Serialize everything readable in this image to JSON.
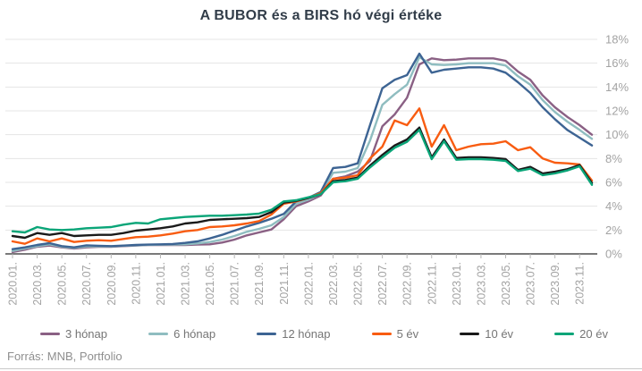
{
  "footer": {
    "source": "Forrás: MNB, Portfolio"
  },
  "chart_data": {
    "type": "line",
    "title": "A BUBOR és a BIRS hó végi értéke",
    "xlabel": "",
    "ylabel": "",
    "ylim": [
      0,
      18
    ],
    "ytick_step": 2,
    "ytick_suffix": "%",
    "grid": true,
    "legend_position": "bottom",
    "x_tick_every": 2,
    "x": [
      "2020.01.",
      "2020.02.",
      "2020.03.",
      "2020.04.",
      "2020.05.",
      "2020.06.",
      "2020.07.",
      "2020.08.",
      "2020.09.",
      "2020.10.",
      "2020.11.",
      "2020.12.",
      "2021.01.",
      "2021.02.",
      "2021.03.",
      "2021.04.",
      "2021.05.",
      "2021.06.",
      "2021.07.",
      "2021.08.",
      "2021.09.",
      "2021.10.",
      "2021.11.",
      "2021.12.",
      "2022.01.",
      "2022.02.",
      "2022.03.",
      "2022.04.",
      "2022.05.",
      "2022.06.",
      "2022.07.",
      "2022.08.",
      "2022.09.",
      "2022.10.",
      "2022.11.",
      "2022.12.",
      "2023.01.",
      "2023.02.",
      "2023.03.",
      "2023.04.",
      "2023.05.",
      "2023.06.",
      "2023.07.",
      "2023.08.",
      "2023.09.",
      "2023.10.",
      "2023.11.",
      "2023.12."
    ],
    "series": [
      {
        "name": "3 hónap",
        "color": "#8a6084",
        "values": [
          0.16,
          0.35,
          0.6,
          0.7,
          0.55,
          0.45,
          0.55,
          0.6,
          0.6,
          0.65,
          0.7,
          0.75,
          0.75,
          0.75,
          0.75,
          0.78,
          0.8,
          0.95,
          1.2,
          1.55,
          1.8,
          2.05,
          2.9,
          4.0,
          4.4,
          4.9,
          6.3,
          6.5,
          6.9,
          7.8,
          10.7,
          11.7,
          13.1,
          15.9,
          16.4,
          16.25,
          16.3,
          16.4,
          16.4,
          16.4,
          16.2,
          15.3,
          14.6,
          13.3,
          12.3,
          11.5,
          10.8,
          10.0
        ]
      },
      {
        "name": "6 hónap",
        "color": "#8fbdc0",
        "values": [
          0.25,
          0.45,
          0.65,
          0.8,
          0.6,
          0.5,
          0.62,
          0.63,
          0.62,
          0.68,
          0.72,
          0.76,
          0.77,
          0.78,
          0.8,
          0.88,
          1.0,
          1.2,
          1.5,
          1.85,
          2.1,
          2.4,
          3.1,
          4.2,
          4.55,
          5.05,
          6.8,
          6.9,
          7.2,
          9.5,
          12.5,
          13.4,
          14.2,
          16.5,
          15.9,
          15.85,
          15.9,
          16.0,
          16.0,
          16.0,
          15.8,
          14.9,
          14.2,
          12.9,
          11.9,
          11.1,
          10.4,
          9.65
        ]
      },
      {
        "name": "12 hónap",
        "color": "#3d6493",
        "values": [
          0.4,
          0.55,
          0.75,
          0.9,
          0.65,
          0.55,
          0.72,
          0.68,
          0.65,
          0.7,
          0.75,
          0.78,
          0.8,
          0.83,
          0.92,
          1.05,
          1.3,
          1.6,
          1.95,
          2.3,
          2.6,
          2.95,
          3.35,
          4.4,
          4.7,
          5.2,
          7.2,
          7.3,
          7.6,
          10.8,
          13.9,
          14.6,
          15.0,
          16.8,
          15.2,
          15.45,
          15.55,
          15.65,
          15.65,
          15.55,
          15.2,
          14.4,
          13.5,
          12.3,
          11.3,
          10.4,
          9.75,
          9.1
        ]
      },
      {
        "name": "5 év",
        "color": "#f85c11",
        "values": [
          1.05,
          0.85,
          1.3,
          1.05,
          1.3,
          1.0,
          1.1,
          1.15,
          1.1,
          1.25,
          1.4,
          1.45,
          1.55,
          1.7,
          1.9,
          2.0,
          2.25,
          2.3,
          2.4,
          2.55,
          2.75,
          3.3,
          4.2,
          4.4,
          4.7,
          5.1,
          6.3,
          6.4,
          6.6,
          8.0,
          9.0,
          11.2,
          10.8,
          12.2,
          9.0,
          10.8,
          8.7,
          9.0,
          9.2,
          9.25,
          9.45,
          8.7,
          8.95,
          8.0,
          7.65,
          7.6,
          7.5,
          6.15
        ]
      },
      {
        "name": "10 év",
        "color": "#1a1a1a",
        "values": [
          1.5,
          1.35,
          1.75,
          1.6,
          1.75,
          1.5,
          1.55,
          1.6,
          1.6,
          1.75,
          1.95,
          2.05,
          2.15,
          2.3,
          2.55,
          2.65,
          2.85,
          2.9,
          2.95,
          3.0,
          3.1,
          3.5,
          4.3,
          4.45,
          4.7,
          5.0,
          6.1,
          6.2,
          6.4,
          7.4,
          8.3,
          9.1,
          9.6,
          10.6,
          8.1,
          9.6,
          8.05,
          8.1,
          8.1,
          8.05,
          7.95,
          7.05,
          7.3,
          6.75,
          6.9,
          7.1,
          7.45,
          5.95
        ]
      },
      {
        "name": "20 év",
        "color": "#0aa578",
        "values": [
          1.9,
          1.8,
          2.25,
          2.05,
          2.0,
          2.05,
          2.15,
          2.2,
          2.25,
          2.45,
          2.6,
          2.55,
          2.9,
          3.0,
          3.1,
          3.15,
          3.2,
          3.2,
          3.25,
          3.3,
          3.38,
          3.7,
          4.4,
          4.5,
          4.75,
          5.0,
          6.0,
          6.1,
          6.3,
          7.25,
          8.1,
          8.9,
          9.4,
          10.4,
          7.95,
          9.45,
          7.9,
          7.95,
          7.95,
          7.9,
          7.8,
          6.95,
          7.15,
          6.6,
          6.75,
          7.0,
          7.35,
          5.8
        ]
      }
    ]
  }
}
